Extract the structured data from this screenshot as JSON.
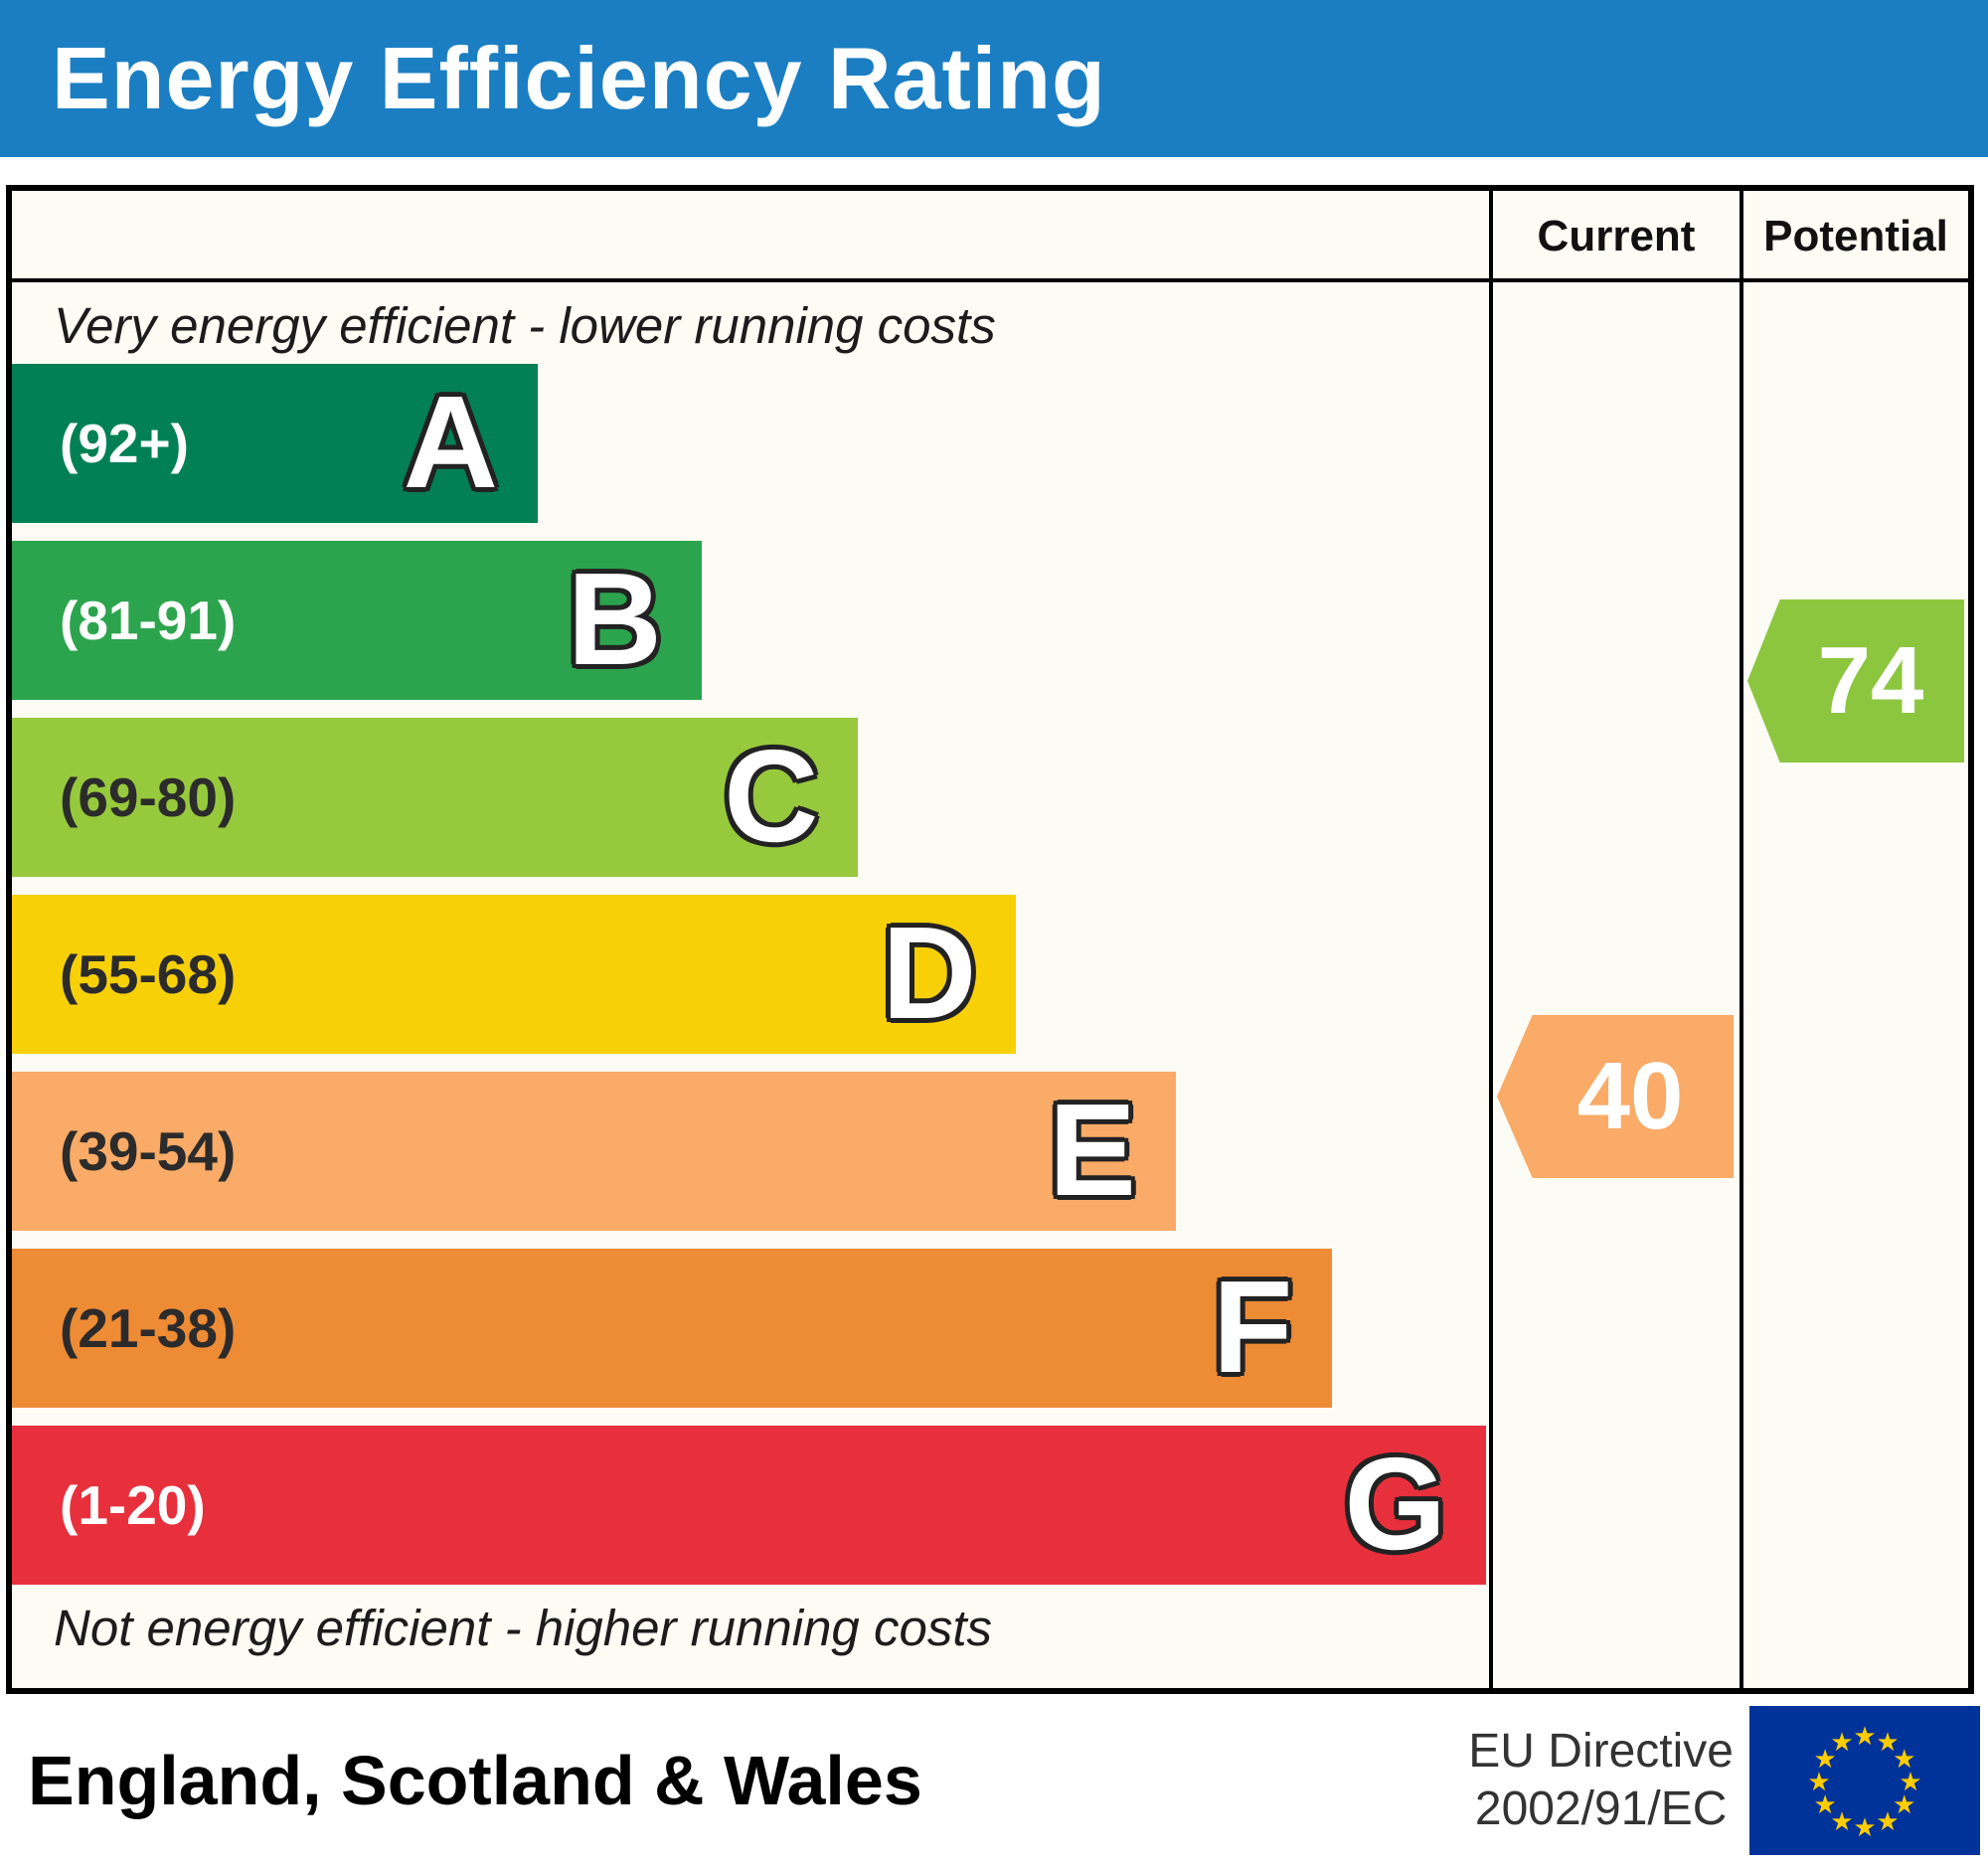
{
  "header": {
    "title": "Energy Efficiency Rating"
  },
  "table": {
    "current_label": "Current",
    "potential_label": "Potential",
    "top_note": "Very energy efficient - lower running costs",
    "bottom_note": "Not energy efficient - higher running costs"
  },
  "chart_data": {
    "type": "bar",
    "title": "Energy Efficiency Rating",
    "categories": [
      "A",
      "B",
      "C",
      "D",
      "E",
      "F",
      "G"
    ],
    "bands": [
      {
        "letter": "A",
        "range": "(92+)",
        "score_range": [
          92,
          100
        ],
        "color": "#008054",
        "width_pct": 35.6,
        "label_color": "#ffffff"
      },
      {
        "letter": "B",
        "range": "(81-91)",
        "score_range": [
          81,
          91
        ],
        "color": "#2ca44e",
        "width_pct": 46.7,
        "label_color": "#ffffff"
      },
      {
        "letter": "C",
        "range": "(69-80)",
        "score_range": [
          69,
          80
        ],
        "color": "#97c93d",
        "width_pct": 57.3,
        "label_color": "#2b2b2b"
      },
      {
        "letter": "D",
        "range": "(55-68)",
        "score_range": [
          55,
          68
        ],
        "color": "#f7d008",
        "width_pct": 68.0,
        "label_color": "#2b2b2b"
      },
      {
        "letter": "E",
        "range": "(39-54)",
        "score_range": [
          39,
          54
        ],
        "color": "#f9ab67",
        "width_pct": 78.8,
        "label_color": "#2b2b2b"
      },
      {
        "letter": "F",
        "range": "(21-38)",
        "score_range": [
          21,
          38
        ],
        "color": "#ee8b35",
        "width_pct": 89.4,
        "label_color": "#2b2b2b"
      },
      {
        "letter": "G",
        "range": "(1-20)",
        "score_range": [
          1,
          20
        ],
        "color": "#e8303d",
        "width_pct": 99.8,
        "label_color": "#ffffff"
      }
    ],
    "current": {
      "value": 40,
      "band": "E",
      "color": "#f9ab67"
    },
    "potential": {
      "value": 74,
      "band": "C",
      "color": "#8cc63f"
    },
    "ylim": [
      1,
      100
    ],
    "legend_position": "none",
    "grid": false
  },
  "footer": {
    "region": "England, Scotland & Wales",
    "directive_line1": "EU Directive",
    "directive_line2": "2002/91/EC"
  },
  "colors": {
    "header_bg": "#1b7ec2",
    "eu_flag_bg": "#003399",
    "eu_star": "#ffcc00"
  }
}
